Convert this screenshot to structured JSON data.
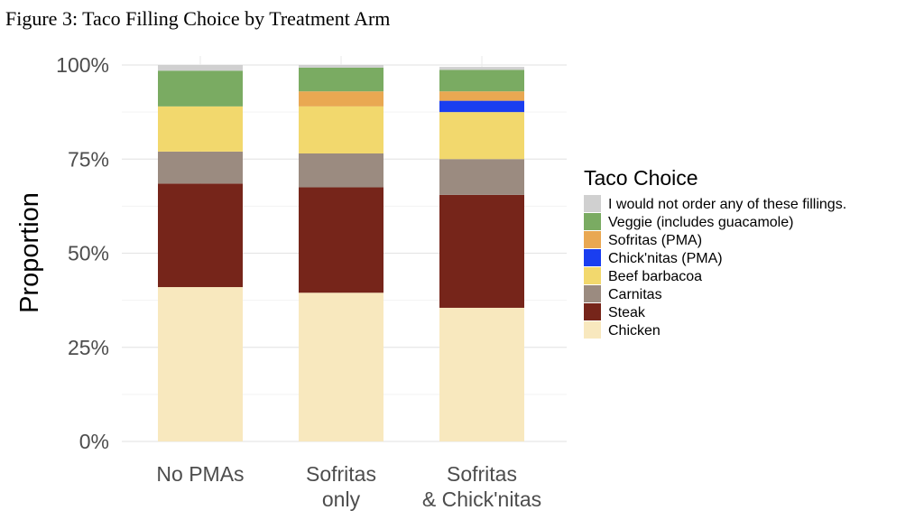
{
  "figure_title": "Figure 3: Taco Filling Choice by Treatment Arm",
  "chart_data": {
    "type": "bar",
    "stacked": true,
    "title": "",
    "xlabel": "",
    "ylabel": "Proportion",
    "ylim": [
      0,
      1
    ],
    "y_ticks": [
      0,
      0.25,
      0.5,
      0.75,
      1.0
    ],
    "y_tick_labels": [
      "0%",
      "25%",
      "50%",
      "75%",
      "100%"
    ],
    "grid": true,
    "legend_title": "Taco Choice",
    "legend_position": "right",
    "categories": [
      [
        "No PMAs"
      ],
      [
        "Sofritas",
        "only"
      ],
      [
        "Sofritas",
        "& Chick'nitas"
      ]
    ],
    "series": [
      {
        "name": "Chicken",
        "color": "#f8e8be",
        "values": [
          0.41,
          0.395,
          0.355
        ]
      },
      {
        "name": "Steak",
        "color": "#76251a",
        "values": [
          0.275,
          0.28,
          0.3
        ]
      },
      {
        "name": "Carnitas",
        "color": "#9b8b80",
        "values": [
          0.085,
          0.09,
          0.095
        ]
      },
      {
        "name": "Beef barbacoa",
        "color": "#f2d86d",
        "values": [
          0.12,
          0.125,
          0.125
        ]
      },
      {
        "name": "Chick'nitas (PMA)",
        "color": "#1a3ef0",
        "values": [
          0,
          0,
          0.03
        ]
      },
      {
        "name": "Sofritas (PMA)",
        "color": "#e9a852",
        "values": [
          0,
          0.04,
          0.025
        ]
      },
      {
        "name": "Veggie (includes guacamole)",
        "color": "#7aab62",
        "values": [
          0.095,
          0.063,
          0.057
        ]
      },
      {
        "name": "I would not order any of these fillings.",
        "color": "#d0d0d0",
        "values": [
          0.015,
          0.007,
          0.008
        ]
      }
    ],
    "legend_order": [
      "I would not order any of these fillings.",
      "Veggie (includes guacamole)",
      "Sofritas (PMA)",
      "Chick'nitas (PMA)",
      "Beef barbacoa",
      "Carnitas",
      "Steak",
      "Chicken"
    ]
  }
}
